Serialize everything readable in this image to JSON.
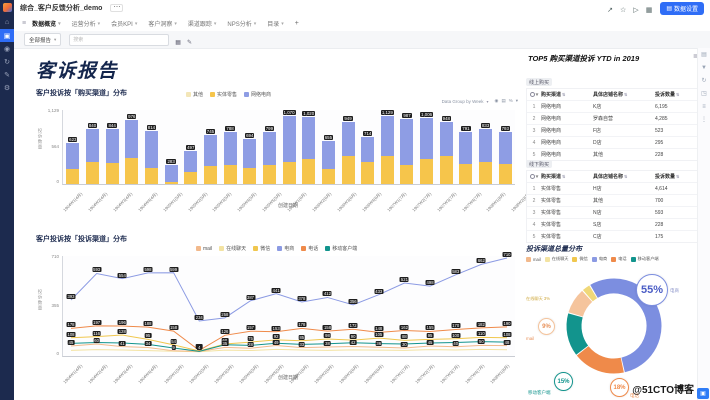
{
  "header": {
    "title": "综合_客户反馈分析_demo",
    "more": "⋯",
    "action_icons": [
      {
        "name": "share-icon",
        "glyph": "↗"
      },
      {
        "name": "star-icon",
        "glyph": "☆"
      },
      {
        "name": "play-icon",
        "glyph": "▷"
      },
      {
        "name": "grid-icon",
        "glyph": "▦"
      }
    ],
    "primary_button": "数据设置"
  },
  "sidebar": {
    "icons": [
      {
        "name": "home-icon",
        "glyph": "⌂",
        "active": false
      },
      {
        "name": "apps-icon",
        "glyph": "▣",
        "active": true
      },
      {
        "name": "pin-icon",
        "glyph": "◉",
        "active": false
      },
      {
        "name": "history-icon",
        "glyph": "↻",
        "active": false
      },
      {
        "name": "edit-icon",
        "glyph": "✎",
        "active": false
      },
      {
        "name": "gear-icon",
        "glyph": "⚙",
        "active": false
      }
    ]
  },
  "tabs": {
    "items": [
      "数据概览",
      "运营分析",
      "会员KPI",
      "客户洞察",
      "渠道跟踪",
      "NPS分析",
      "目录"
    ],
    "active_index": 0,
    "add_label": "+"
  },
  "filter_bar": {
    "scope_dropdown": "全部报告",
    "search_placeholder": "搜索",
    "icons": [
      {
        "name": "component-grid-icon",
        "glyph": "▦"
      },
      {
        "name": "edit-pen-icon",
        "glyph": "✎"
      }
    ]
  },
  "report": {
    "title": "客诉报告"
  },
  "bar_controls": {
    "label": "Data Group by Week",
    "icons": [
      {
        "name": "summary-icon",
        "glyph": "◉"
      },
      {
        "name": "table-icon",
        "glyph": "▤"
      },
      {
        "name": "percent-icon",
        "glyph": "%"
      },
      {
        "name": "caret-down-icon",
        "glyph": "▾"
      }
    ]
  },
  "chart_data": [
    {
      "type": "bar",
      "title": "客户投诉按「购买渠道」分布",
      "xlabel": "创建日期",
      "ylabel": "投诉数量",
      "ylim": [
        0,
        1129
      ],
      "yticks": [
        "1,129",
        "564",
        "0"
      ],
      "legend": [
        {
          "label": "其他",
          "color": "#f3e6b8"
        },
        {
          "label": "实体零售",
          "color": "#f6c54b"
        },
        {
          "label": "网络电商",
          "color": "#8e9de4"
        }
      ],
      "categories": [
        "1904W1(4月)",
        "1904W2(4月)",
        "1904W3(4月)",
        "1904W4(4月)",
        "1905W1(5月)",
        "1905W2(5月)",
        "1905W3(5月)",
        "1905W4(5月)",
        "1905W5(5月)",
        "1906W1(6月)",
        "1906W2(6月)",
        "1906W3(6月)",
        "1906W4(6月)",
        "1907W1(7月)",
        "1907W2(7月)",
        "1907W3(7月)",
        "1907W4(7月)",
        "1908W1(8月)",
        "1908W2(8月)",
        "1908W3(8月)",
        "1908W4(8月)",
        "1909W1(9月)",
        "1909W2(9月)"
      ],
      "totals": [
        623,
        840,
        844,
        976,
        814,
        283,
        497,
        745,
        788,
        694,
        799,
        1070,
        1020,
        655,
        949,
        714,
        1129,
        987,
        1006,
        948,
        791,
        833,
        793
      ],
      "series": [
        {
          "name": "实体零售",
          "color": "#f6c54b",
          "values": [
            225,
            330,
            315,
            390,
            245,
            35,
            185,
            270,
            285,
            250,
            285,
            330,
            385,
            235,
            420,
            330,
            425,
            285,
            380,
            420,
            300,
            330,
            310
          ]
        },
        {
          "name": "网络电商",
          "color": "#8e9de4",
          "values": [
            398,
            510,
            529,
            586,
            569,
            248,
            312,
            475,
            503,
            444,
            514,
            740,
            635,
            420,
            529,
            384,
            704,
            702,
            626,
            528,
            491,
            503,
            483
          ]
        }
      ]
    },
    {
      "type": "line",
      "title": "客户投诉按「投诉渠道」分布",
      "xlabel": "创建日期",
      "ylabel": "投诉数量",
      "ylim": [
        0,
        710
      ],
      "yticks": [
        "710",
        "355",
        "0"
      ],
      "legend_order": [
        "mail",
        "在线聊天",
        "微信",
        "电商",
        "电话",
        "移动客户端"
      ],
      "x": [
        "1904W1(4月)",
        "1904W2(4月)",
        "1904W3(4月)",
        "1904W4(4月)",
        "1905W1(5月)",
        "1905W2(5月)",
        "1905W3(5月)",
        "1905W4(5月)",
        "1905W5(5月)",
        "1906W1(6月)",
        "1906W2(6月)",
        "1906W3(6月)",
        "1906W4(6月)",
        "1907W1(7月)",
        "1907W2(7月)",
        "1907W3(7月)",
        "1907W4(7月)",
        "1908W1(8月)"
      ],
      "series": [
        {
          "name": "mail",
          "color": "#f2b98c",
          "values": [
            45,
            60,
            41,
            34,
            9,
            4,
            35,
            28,
            49,
            33,
            38,
            42,
            36,
            30,
            45,
            40,
            50,
            48
          ]
        },
        {
          "name": "在线聊天",
          "color": "#f3e3a2",
          "values": [
            12,
            18,
            15,
            10,
            6,
            2,
            14,
            11,
            20,
            15,
            12,
            16,
            14,
            12,
            18,
            15,
            20,
            17
          ]
        },
        {
          "name": "微信",
          "color": "#f0c74e",
          "values": [
            108,
            116,
            128,
            95,
            54,
            8,
            60,
            75,
            92,
            85,
            98,
            90,
            105,
            88,
            95,
            100,
            110,
            108
          ]
        },
        {
          "name": "电商",
          "color": "#8b9ae3",
          "values": [
            393,
            593,
            554,
            598,
            599,
            234,
            258,
            387,
            441,
            378,
            412,
            356,
            433,
            521,
            498,
            583,
            662,
            710
          ]
        },
        {
          "name": "电话",
          "color": "#ef8a4a",
          "values": [
            178,
            197,
            196,
            188,
            158,
            12,
            126,
            157,
            153,
            178,
            158,
            172,
            148,
            162,
            155,
            170,
            182,
            190
          ]
        },
        {
          "name": "移动客户端",
          "color": "#12948d",
          "values": [
            65,
            72,
            68,
            58,
            30,
            5,
            55,
            50,
            66,
            58,
            62,
            70,
            64,
            60,
            68,
            72,
            78,
            75
          ]
        }
      ]
    },
    {
      "type": "pie",
      "title": "投诉渠道总量分布",
      "labels": [
        "电商",
        "电话",
        "移动客户端",
        "mail",
        "在线聊天"
      ],
      "values": [
        55,
        18,
        15,
        9,
        3
      ],
      "colors": [
        "#7c8ee0",
        "#ef8a4a",
        "#12948d",
        "#f5c49c",
        "#f0d878"
      ],
      "badge_texts": [
        "55%",
        "18%",
        "15%",
        "9%",
        "在线聊天 3%"
      ]
    }
  ],
  "panel": {
    "title": "TOP5 购买渠道投诉 YTD in 2019",
    "online": {
      "section": "线上购买",
      "columns": [
        "购买渠道",
        "具体店铺名称",
        "投诉数量"
      ],
      "rows": [
        [
          "1",
          "网络电商",
          "K店",
          "6,195"
        ],
        [
          "2",
          "网络电商",
          "罗森自营",
          "4,285"
        ],
        [
          "3",
          "网络电商",
          "F店",
          "523"
        ],
        [
          "4",
          "网络电商",
          "D店",
          "295"
        ],
        [
          "5",
          "网络电商",
          "其他",
          "228"
        ]
      ]
    },
    "offline": {
      "section": "线下购买",
      "columns": [
        "购买渠道",
        "具体店铺名称",
        "投诉数量"
      ],
      "rows": [
        [
          "1",
          "实体零售",
          "H店",
          "4,614"
        ],
        [
          "2",
          "实体零售",
          "其他",
          "700"
        ],
        [
          "3",
          "实体零售",
          "N店",
          "593"
        ],
        [
          "4",
          "实体零售",
          "S店",
          "228"
        ],
        [
          "5",
          "实体零售",
          "C店",
          "175"
        ]
      ]
    }
  },
  "rail": {
    "icons": [
      {
        "name": "comment-icon",
        "glyph": "▤"
      },
      {
        "name": "filter-icon",
        "glyph": "▼"
      },
      {
        "name": "refresh-icon",
        "glyph": "↻"
      },
      {
        "name": "expand-icon",
        "glyph": "◳"
      },
      {
        "name": "menu-icon",
        "glyph": "≡"
      },
      {
        "name": "more-icon",
        "glyph": "⋮"
      }
    ]
  },
  "watermark": {
    "text": "@51CTO博客",
    "chip_glyph": "▣"
  }
}
